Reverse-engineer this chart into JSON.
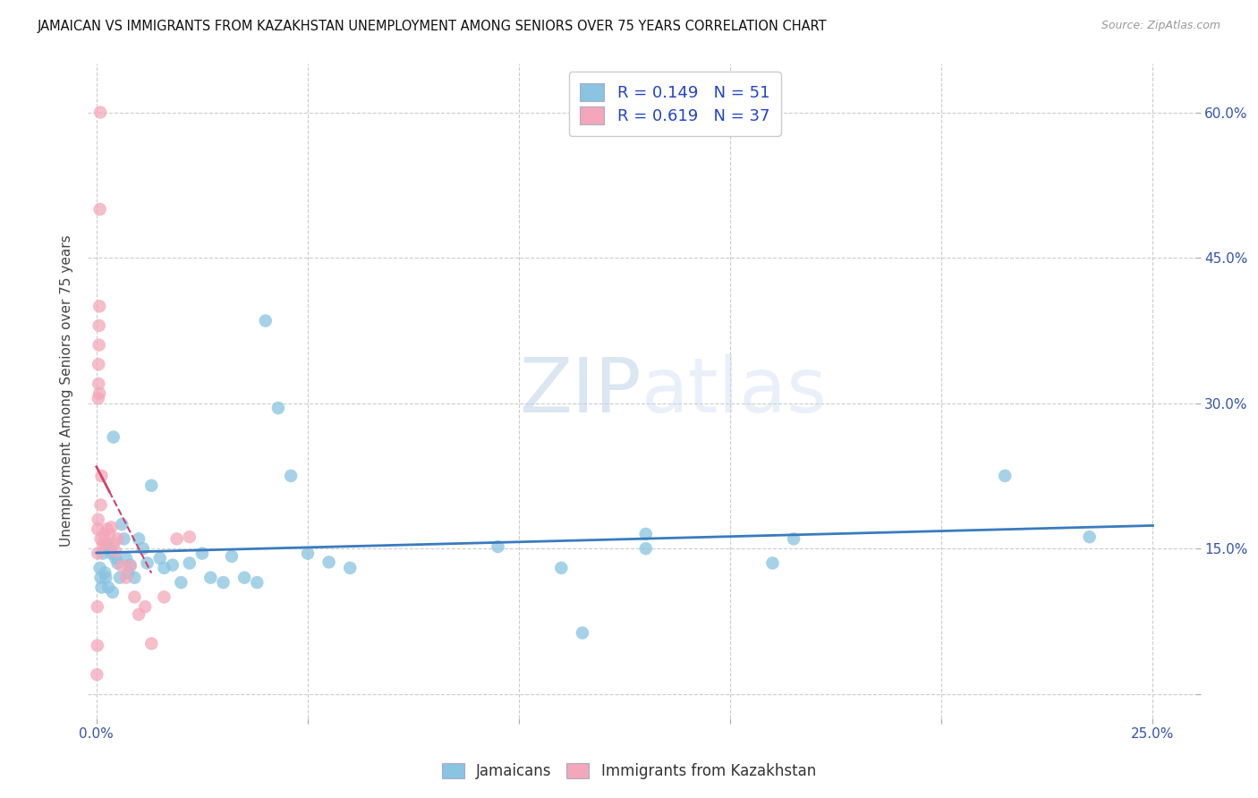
{
  "title": "JAMAICAN VS IMMIGRANTS FROM KAZAKHSTAN UNEMPLOYMENT AMONG SENIORS OVER 75 YEARS CORRELATION CHART",
  "source": "Source: ZipAtlas.com",
  "ylabel": "Unemployment Among Seniors over 75 years",
  "legend_label1": "Jamaicans",
  "legend_label2": "Immigrants from Kazakhstan",
  "R1": 0.149,
  "N1": 51,
  "R2": 0.619,
  "N2": 37,
  "color_blue": "#89c4e1",
  "color_pink": "#f4a7b9",
  "color_line_blue": "#3a7bbf",
  "color_line_pink": "#d44070",
  "x_min": -0.002,
  "x_max": 0.26,
  "y_min": -0.025,
  "y_max": 0.65,
  "blue_x": [
    0.0008,
    0.001,
    0.0012,
    0.0015,
    0.002,
    0.0022,
    0.0025,
    0.0028,
    0.003,
    0.0035,
    0.0038,
    0.004,
    0.0045,
    0.005,
    0.0055,
    0.006,
    0.0065,
    0.007,
    0.0075,
    0.008,
    0.009,
    0.01,
    0.011,
    0.012,
    0.013,
    0.015,
    0.016,
    0.018,
    0.02,
    0.022,
    0.025,
    0.027,
    0.03,
    0.032,
    0.035,
    0.038,
    0.04,
    0.043,
    0.046,
    0.05,
    0.055,
    0.06,
    0.095,
    0.115,
    0.13,
    0.13,
    0.165,
    0.215,
    0.235,
    0.16,
    0.11
  ],
  "blue_y": [
    0.13,
    0.12,
    0.11,
    0.145,
    0.125,
    0.12,
    0.155,
    0.11,
    0.15,
    0.145,
    0.105,
    0.265,
    0.14,
    0.135,
    0.12,
    0.175,
    0.16,
    0.14,
    0.125,
    0.133,
    0.12,
    0.16,
    0.15,
    0.135,
    0.215,
    0.14,
    0.13,
    0.133,
    0.115,
    0.135,
    0.145,
    0.12,
    0.115,
    0.142,
    0.12,
    0.115,
    0.385,
    0.295,
    0.225,
    0.145,
    0.136,
    0.13,
    0.152,
    0.063,
    0.15,
    0.165,
    0.16,
    0.225,
    0.162,
    0.135,
    0.13
  ],
  "pink_x": [
    0.0001,
    0.0002,
    0.0002,
    0.0003,
    0.0003,
    0.0004,
    0.0004,
    0.0005,
    0.0005,
    0.0006,
    0.0006,
    0.0007,
    0.0007,
    0.0008,
    0.0009,
    0.001,
    0.001,
    0.0012,
    0.0015,
    0.0018,
    0.002,
    0.0025,
    0.003,
    0.0035,
    0.004,
    0.0045,
    0.005,
    0.006,
    0.007,
    0.008,
    0.009,
    0.01,
    0.0115,
    0.013,
    0.016,
    0.019,
    0.022
  ],
  "pink_y": [
    0.02,
    0.05,
    0.09,
    0.145,
    0.17,
    0.18,
    0.305,
    0.32,
    0.34,
    0.36,
    0.38,
    0.4,
    0.31,
    0.5,
    0.6,
    0.16,
    0.195,
    0.225,
    0.155,
    0.165,
    0.155,
    0.17,
    0.165,
    0.172,
    0.155,
    0.147,
    0.16,
    0.132,
    0.12,
    0.132,
    0.1,
    0.082,
    0.09,
    0.052,
    0.1,
    0.16,
    0.162
  ],
  "watermark_zip": "ZIP",
  "watermark_atlas": "atlas",
  "xtick_positions": [
    0.0,
    0.05,
    0.1,
    0.15,
    0.2,
    0.25
  ],
  "ytick_positions": [
    0.0,
    0.15,
    0.3,
    0.45,
    0.6
  ],
  "x_edge_left": "0.0%",
  "x_edge_right": "25.0%",
  "y_right_labels": [
    "",
    "15.0%",
    "30.0%",
    "45.0%",
    "60.0%"
  ]
}
